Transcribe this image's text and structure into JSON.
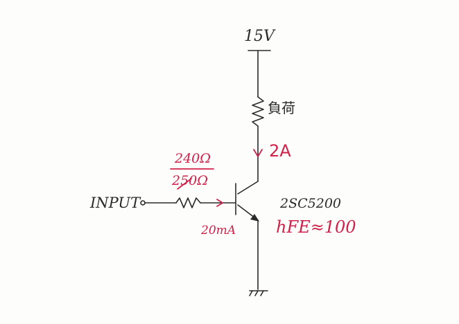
{
  "supply": {
    "label": "15V"
  },
  "load": {
    "label": "負荷"
  },
  "collector_current": {
    "label": "2A"
  },
  "base_resistor": {
    "value_1": "240Ω",
    "value_2": "250Ω"
  },
  "input": {
    "label": "INPUT"
  },
  "base_current": {
    "label": "20mA"
  },
  "transistor": {
    "part": "2SC5200",
    "hfe_label": "hFE",
    "hfe_value": "≈100"
  },
  "colors": {
    "ink": "#2a2a2a",
    "annotation": "#d0214a"
  }
}
